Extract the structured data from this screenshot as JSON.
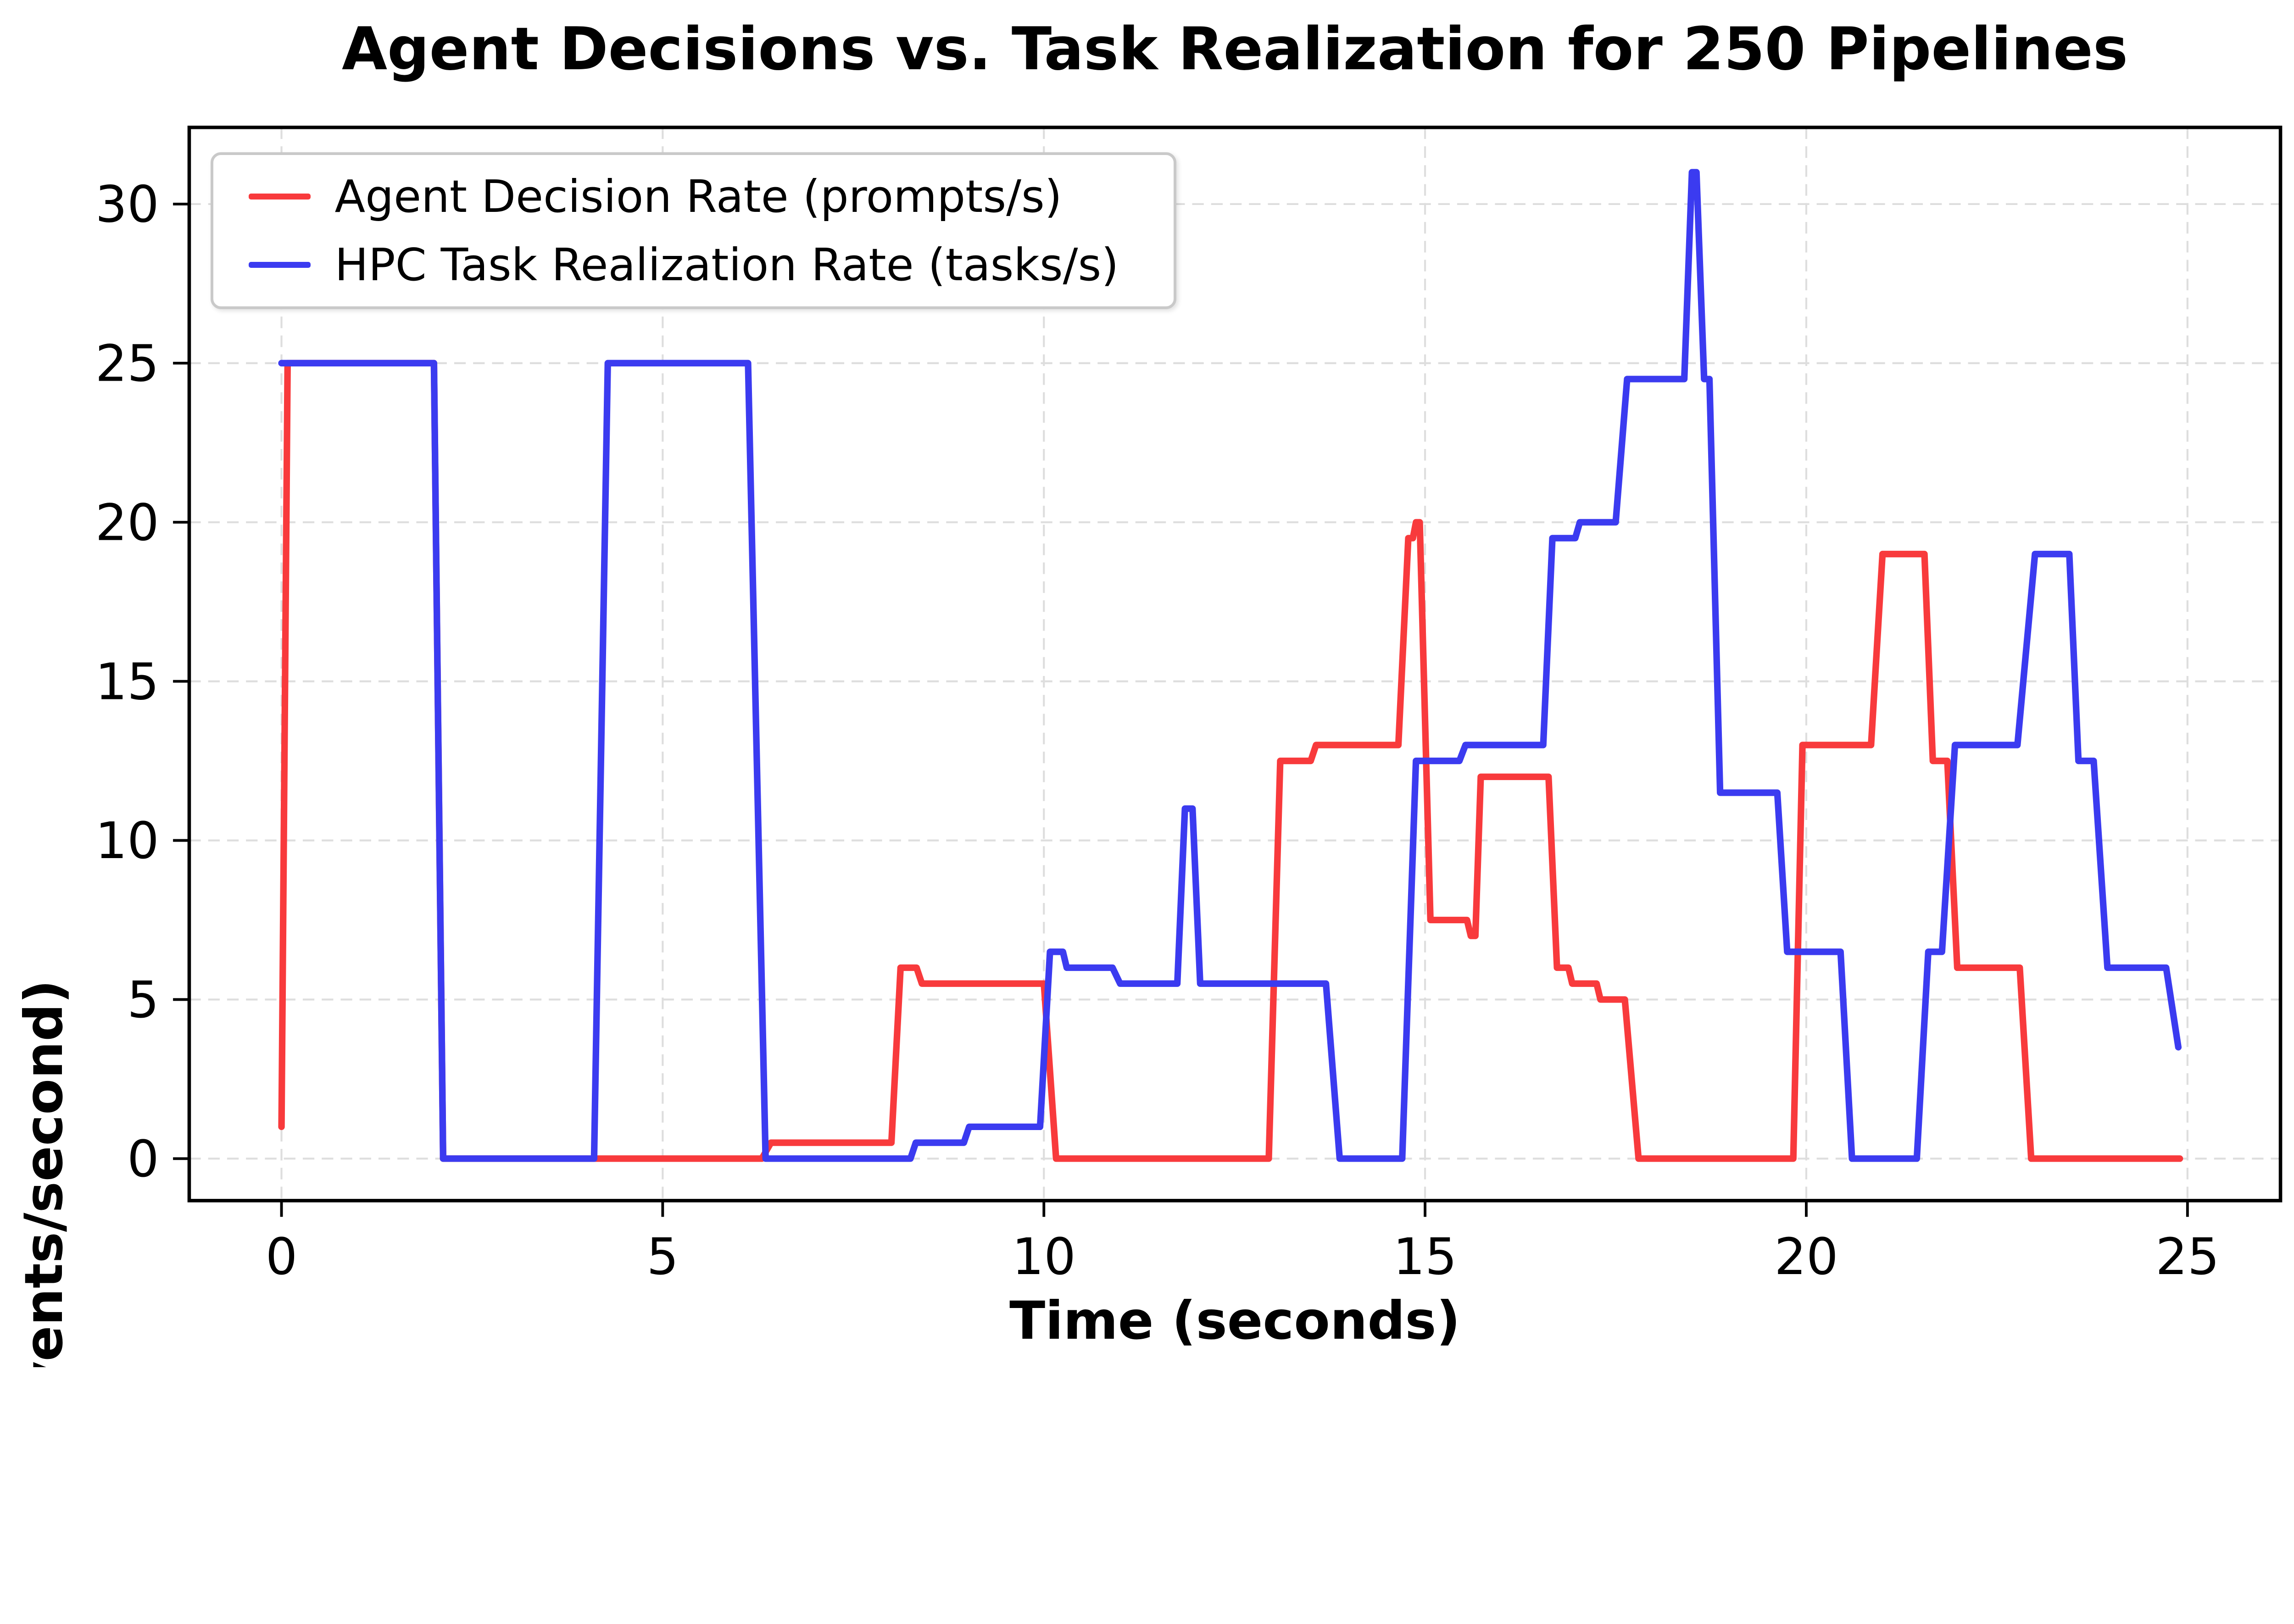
{
  "chart_data": {
    "type": "line",
    "title": "Agent Decisions vs. Task Realization for 250 Pipelines",
    "xlabel": "Time (seconds)",
    "ylabel": "Rate (events/second)",
    "xlim": [
      -1.21,
      26.22
    ],
    "ylim": [
      -1.32,
      32.41
    ],
    "xticks": [
      0,
      5,
      10,
      15,
      20,
      25
    ],
    "yticks": [
      0,
      5,
      10,
      15,
      20,
      25,
      30
    ],
    "grid": true,
    "grid_color": "#dedede",
    "background": "#ffffff",
    "legend_position": "upper left",
    "series": [
      {
        "name": "Agent Decision Rate (prompts/s)",
        "color": "#f83a3c",
        "points": [
          [
            0,
            1
          ],
          [
            0.08,
            25
          ],
          [
            2.0,
            25
          ],
          [
            2.12,
            0
          ],
          [
            6.3,
            0
          ],
          [
            6.42,
            0.5
          ],
          [
            8.0,
            0.5
          ],
          [
            8.12,
            6
          ],
          [
            8.33,
            6
          ],
          [
            8.4,
            5.5
          ],
          [
            10.0,
            5.5
          ],
          [
            10.16,
            0
          ],
          [
            12.95,
            0
          ],
          [
            13.1,
            12.5
          ],
          [
            13.5,
            12.5
          ],
          [
            13.57,
            13
          ],
          [
            14.65,
            13
          ],
          [
            14.78,
            19.5
          ],
          [
            14.84,
            19.5
          ],
          [
            14.88,
            20
          ],
          [
            14.93,
            20
          ],
          [
            15.07,
            7.5
          ],
          [
            15.55,
            7.5
          ],
          [
            15.6,
            7
          ],
          [
            15.66,
            7
          ],
          [
            15.73,
            12
          ],
          [
            16.62,
            12
          ],
          [
            16.73,
            6
          ],
          [
            16.88,
            6
          ],
          [
            16.93,
            5.5
          ],
          [
            17.25,
            5.5
          ],
          [
            17.3,
            5
          ],
          [
            17.62,
            5
          ],
          [
            17.8,
            0
          ],
          [
            19.83,
            0
          ],
          [
            19.95,
            13
          ],
          [
            20.85,
            13
          ],
          [
            21.0,
            19
          ],
          [
            21.55,
            19
          ],
          [
            21.66,
            12.5
          ],
          [
            21.85,
            12.5
          ],
          [
            21.98,
            6
          ],
          [
            22.8,
            6
          ],
          [
            22.95,
            0
          ],
          [
            24.9,
            0
          ]
        ]
      },
      {
        "name": "HPC Task Realization Rate (tasks/s)",
        "color": "#3b3bf0",
        "points": [
          [
            0,
            25
          ],
          [
            2.0,
            25
          ],
          [
            2.12,
            0
          ],
          [
            4.1,
            0
          ],
          [
            4.28,
            25
          ],
          [
            6.12,
            25
          ],
          [
            6.35,
            0
          ],
          [
            8.25,
            0
          ],
          [
            8.32,
            0.5
          ],
          [
            8.95,
            0.5
          ],
          [
            9.02,
            1
          ],
          [
            9.95,
            1
          ],
          [
            10.08,
            6.5
          ],
          [
            10.25,
            6.5
          ],
          [
            10.3,
            6
          ],
          [
            10.9,
            6
          ],
          [
            11.0,
            5.5
          ],
          [
            11.75,
            5.5
          ],
          [
            11.85,
            11
          ],
          [
            11.95,
            11
          ],
          [
            12.05,
            5.5
          ],
          [
            13.7,
            5.5
          ],
          [
            13.88,
            0
          ],
          [
            14.7,
            0
          ],
          [
            14.88,
            12.5
          ],
          [
            15.45,
            12.5
          ],
          [
            15.53,
            13
          ],
          [
            16.55,
            13
          ],
          [
            16.67,
            19.5
          ],
          [
            16.97,
            19.5
          ],
          [
            17.03,
            20
          ],
          [
            17.5,
            20
          ],
          [
            17.65,
            24.5
          ],
          [
            18.4,
            24.5
          ],
          [
            18.5,
            31
          ],
          [
            18.56,
            31
          ],
          [
            18.66,
            24.5
          ],
          [
            18.73,
            24.5
          ],
          [
            18.87,
            11.5
          ],
          [
            19.62,
            11.5
          ],
          [
            19.75,
            6.5
          ],
          [
            20.45,
            6.5
          ],
          [
            20.6,
            0
          ],
          [
            21.45,
            0
          ],
          [
            21.6,
            6.5
          ],
          [
            21.78,
            6.5
          ],
          [
            21.95,
            13
          ],
          [
            22.77,
            13
          ],
          [
            23.0,
            19
          ],
          [
            23.45,
            19
          ],
          [
            23.57,
            12.5
          ],
          [
            23.77,
            12.5
          ],
          [
            23.95,
            6
          ],
          [
            24.72,
            6
          ],
          [
            24.88,
            3.5
          ]
        ]
      }
    ]
  }
}
